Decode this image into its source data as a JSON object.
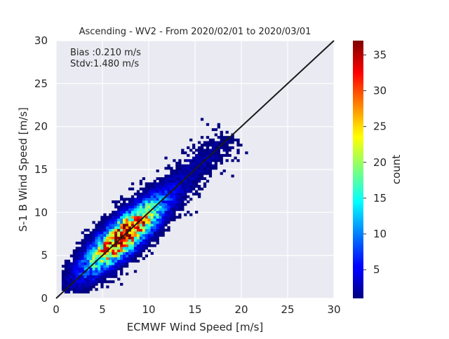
{
  "chart_data": {
    "type": "heatmap",
    "title": "Ascending - WV2 - From 2020/02/01 to 2020/03/01",
    "xlabel": "ECMWF Wind Speed [m/s]",
    "ylabel": "S-1 B Wind Speed [m/s]",
    "xlim": [
      0,
      30
    ],
    "ylim": [
      0,
      30
    ],
    "xticks": [
      0,
      5,
      10,
      15,
      20,
      25,
      30
    ],
    "yticks": [
      0,
      5,
      10,
      15,
      20,
      25,
      30
    ],
    "grid": true,
    "colorbar": {
      "label": "count",
      "range": [
        1,
        37
      ],
      "ticks": [
        5,
        10,
        15,
        20,
        25,
        30,
        35
      ],
      "colormap": "jet"
    },
    "annotations": [
      "Bias :0.210 m/s",
      "Stdv:1.480 m/s"
    ],
    "reference_line": {
      "from": [
        0,
        0
      ],
      "to": [
        30,
        30
      ],
      "color": "#1a1a1a"
    },
    "density_model": {
      "peak_count": 37,
      "peak_x": 7.2,
      "peak_y": 7.3,
      "bin_width": 0.3
    }
  }
}
